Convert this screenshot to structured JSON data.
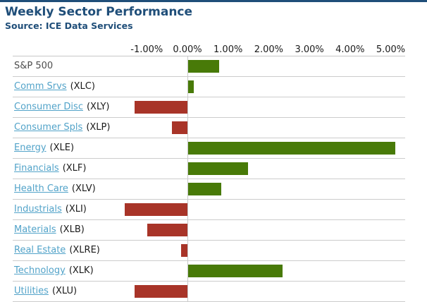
{
  "header": {
    "title": "Weekly Sector Performance",
    "source": "Source: ICE Data Services"
  },
  "colors": {
    "positive_bar": "#487A08",
    "negative_bar": "#A83428",
    "link": "#52A3C9",
    "heading": "#1F4E79",
    "gridline": "#C8C8C8",
    "plain_label": "#4D4D4D",
    "tick_text": "#1A1A1A"
  },
  "chart_data": {
    "type": "bar",
    "orientation": "horizontal",
    "title": "Weekly Sector Performance",
    "subtitle": "Source: ICE Data Services",
    "unit": "%",
    "x_tick_labels": [
      "-1.00%",
      "0.00%",
      "1.00%",
      "2.00%",
      "3.00%",
      "4.00%",
      "5.00%"
    ],
    "x_tick_values": [
      -1,
      0,
      1,
      2,
      3,
      4,
      5
    ],
    "xlim": [
      -4.3,
      5.35
    ],
    "grid": "zero-line-only",
    "legend": "none",
    "rows": [
      {
        "label": "S&P 500",
        "ticker": "",
        "link": false,
        "value": 0.77
      },
      {
        "label": "Comm Srvs",
        "ticker": "(XLC)",
        "link": true,
        "value": 0.13
      },
      {
        "label": "Consumer Disc",
        "ticker": "(XLY)",
        "link": true,
        "value": -1.3
      },
      {
        "label": "Consumer Spls",
        "ticker": "(XLP)",
        "link": true,
        "value": -0.38
      },
      {
        "label": "Energy",
        "ticker": "(XLE)",
        "link": true,
        "value": 5.1
      },
      {
        "label": "Financials",
        "ticker": "(XLF)",
        "link": true,
        "value": 1.48
      },
      {
        "label": "Health Care",
        "ticker": "(XLV)",
        "link": true,
        "value": 0.81
      },
      {
        "label": "Industrials",
        "ticker": "(XLI)",
        "link": true,
        "value": -1.55
      },
      {
        "label": "Materials",
        "ticker": "(XLB)",
        "link": true,
        "value": -0.98
      },
      {
        "label": "Real Estate",
        "ticker": "(XLRE)",
        "link": true,
        "value": -0.15
      },
      {
        "label": "Technology",
        "ticker": "(XLK)",
        "link": true,
        "value": 2.33
      },
      {
        "label": "Utilities",
        "ticker": "(XLU)",
        "link": true,
        "value": -1.3
      }
    ]
  }
}
